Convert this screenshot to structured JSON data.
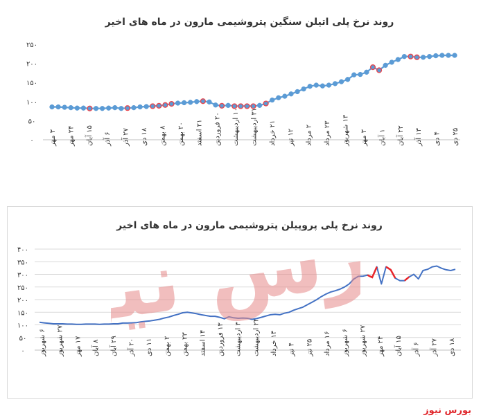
{
  "brand": {
    "label": "بورس نیوز",
    "color": "#e0262b"
  },
  "watermark": {
    "text": "بورس نیوز",
    "color": "#e78a8a"
  },
  "chart_data": [
    {
      "type": "line",
      "title": "روند نرخ پلی اتیلن سنگین پتروشیمی مارون در ماه های اخیر",
      "ylim": [
        0,
        250
      ],
      "yticks": [
        "۰",
        "۵۰",
        "۱۰۰",
        "۱۵۰",
        "۲۰۰",
        "۲۵۰"
      ],
      "grid": false,
      "line_color": "#5b9bd5",
      "marker_color": "#5b9bd5",
      "highlight_color": "#e8474f",
      "x_labels": [
        "۳ مهر",
        "۲۴ مهر",
        "۱۵ آبان",
        "۶ آذر",
        "۲۷ آذر",
        "۱۸ دی",
        "۸ بهمن",
        "۲۰ بهمن",
        "۲۱ اسفند",
        "۲۰ فروردین",
        "۱۰ اردیبهشت",
        "۳۱ اردیبهشت",
        "۲۱ خرداد",
        "۱۲ تیر",
        "۲ مرداد",
        "۲۳ مرداد",
        "۱۳ شهریور",
        "۳ مهر",
        "۱ آبان",
        "۲۲ آبان",
        "۱۳ آذر",
        "۴ دی",
        "۲۵ دی"
      ],
      "values": [
        86,
        86,
        85,
        84,
        83,
        83,
        82,
        82,
        82,
        83,
        84,
        82,
        83,
        84,
        86,
        87,
        88,
        89,
        91,
        94,
        96,
        97,
        98,
        100,
        101,
        99,
        91,
        89,
        90,
        88,
        88,
        88,
        88,
        90,
        95,
        104,
        110,
        114,
        120,
        126,
        133,
        140,
        143,
        141,
        143,
        147,
        152,
        158,
        170,
        171,
        177,
        190,
        182,
        195,
        203,
        210,
        218,
        218,
        216,
        216,
        218,
        220,
        221,
        221,
        221
      ],
      "highlight_indices": [
        6,
        12,
        16,
        17,
        18,
        19,
        24,
        27,
        29,
        30,
        31,
        32,
        34,
        51,
        52,
        57,
        58
      ]
    },
    {
      "type": "line",
      "title": "روند نرخ پلی پروپیلن پتروشیمی مارون در ماه های اخیر",
      "ylim": [
        0,
        400
      ],
      "yticks": [
        "۰",
        "۵۰",
        "۱۰۰",
        "۱۵۰",
        "۲۰۰",
        "۲۵۰",
        "۳۰۰",
        "۳۵۰",
        "۴۰۰"
      ],
      "grid": true,
      "line_color": "#4472c4",
      "highlight_color": "#e8262b",
      "x_labels": [
        "۶ شهریور",
        "۲۷ شهریور",
        "۱۷ مهر",
        "۸ آبان",
        "۲۹ آبان",
        "۲۰ آذر",
        "۱۱ دی",
        "۲ بهمن",
        "۲۳ بهمن",
        "۱۴ اسفند",
        "۱۳ فروردین",
        "۳ اردیبهشت",
        "۲۴ اردیبهشت",
        "۱۴ خرداد",
        "۴ تیر",
        "۲۵ تیر",
        "۱۶ مرداد",
        "۶ شهریور",
        "۲۷ شهریور",
        "۲۴ مهر",
        "۱۵ آبان",
        "۶ آذر",
        "۲۷ آذر",
        "۱۸ دی"
      ],
      "values": [
        110,
        108,
        106,
        104,
        104,
        104,
        103,
        103,
        102,
        102,
        103,
        103,
        103,
        102,
        103,
        103,
        104,
        104,
        107,
        107,
        108,
        109,
        112,
        114,
        116,
        119,
        122,
        127,
        131,
        137,
        142,
        148,
        150,
        147,
        144,
        140,
        137,
        134,
        134,
        130,
        124,
        132,
        128,
        126,
        127,
        126,
        122,
        125,
        130,
        135,
        140,
        142,
        140,
        146,
        150,
        158,
        164,
        170,
        180,
        190,
        200,
        212,
        222,
        230,
        235,
        241,
        250,
        262,
        281,
        292,
        293,
        297,
        288,
        330,
        262,
        330,
        318,
        285,
        275,
        275,
        290,
        300,
        282,
        315,
        320,
        330,
        333,
        324,
        318,
        315,
        320
      ],
      "highlight_ranges": [
        [
          71,
          73
        ],
        [
          75,
          77
        ],
        [
          79,
          80
        ]
      ]
    }
  ]
}
